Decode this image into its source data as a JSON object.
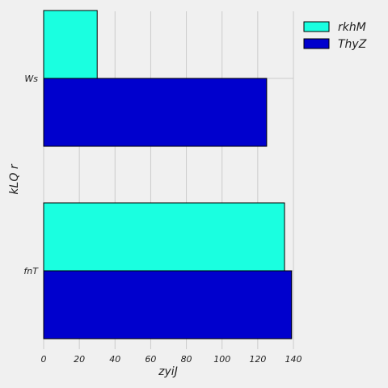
{
  "chart_data": {
    "type": "bar",
    "orientation": "horizontal",
    "categories": [
      "fnT",
      "Ws"
    ],
    "series": [
      {
        "name": "rkhM",
        "color": "#1affe0",
        "values": [
          135,
          30
        ]
      },
      {
        "name": "ThyZ",
        "color": "#0000cd",
        "values": [
          139,
          125
        ]
      }
    ],
    "xlabel": "zyiJ",
    "ylabel": "kLQ r",
    "xlim": [
      0,
      140
    ],
    "xticks": [
      0,
      20,
      40,
      60,
      80,
      100,
      120,
      140
    ],
    "grid": true,
    "legend": "top-right"
  }
}
